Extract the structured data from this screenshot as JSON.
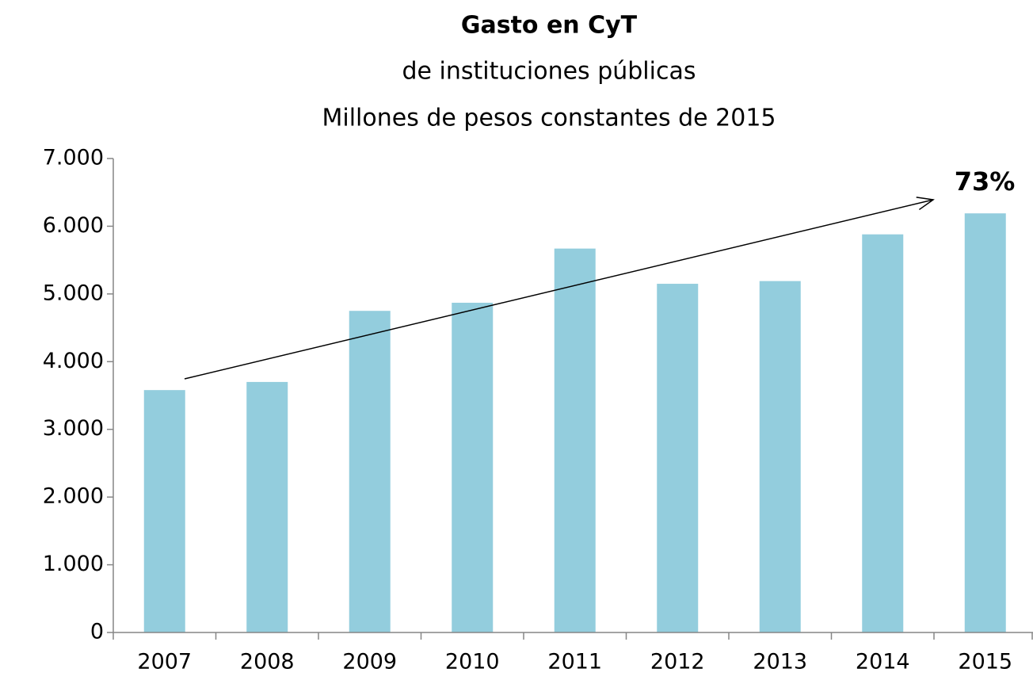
{
  "chart_data": {
    "type": "bar",
    "title": "Gasto en CyT",
    "subtitle": [
      "de instituciones públicas",
      "Millones de pesos constantes de 2015"
    ],
    "categories": [
      "2007",
      "2008",
      "2009",
      "2010",
      "2011",
      "2012",
      "2013",
      "2014",
      "2015"
    ],
    "values": [
      3580,
      3700,
      4750,
      4870,
      5670,
      5150,
      5190,
      5880,
      6190
    ],
    "color": "#93cddd",
    "ylim": [
      0,
      7000
    ],
    "yticks": [
      0,
      {
        "value": 1000,
        "label": "1.000"
      },
      {
        "value": 2000,
        "label": "2.000"
      },
      {
        "value": 3000,
        "label": "3.000"
      },
      {
        "value": 4000,
        "label": "4.000"
      },
      {
        "value": 5000,
        "label": "5.000"
      },
      {
        "value": 6000,
        "label": "6.000"
      },
      {
        "value": 7000,
        "label": "7.000"
      }
    ],
    "annotation": "73%",
    "grid": false
  }
}
